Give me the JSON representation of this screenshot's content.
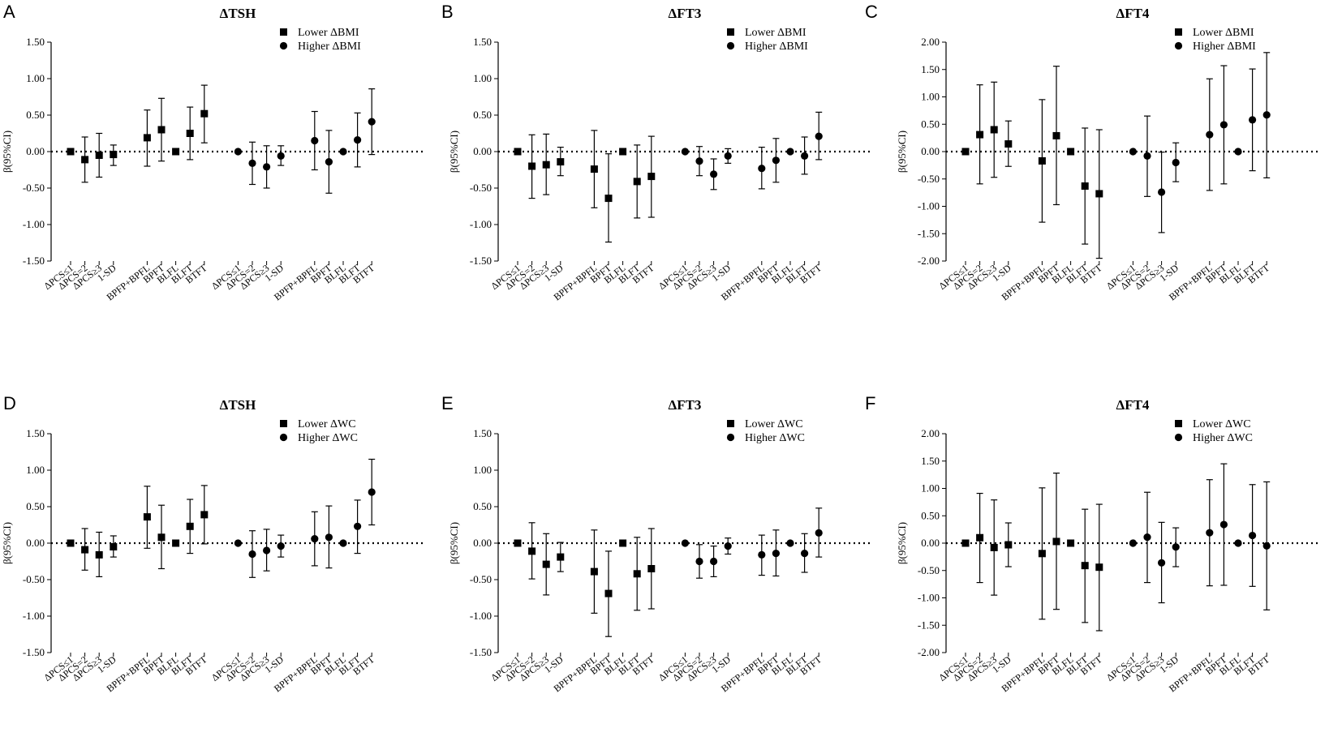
{
  "figure_label": "Six-panel forest plot figure",
  "colors": {
    "marker": "#000000",
    "axis": "#000000",
    "ref_line": "#000000",
    "background": "#ffffff"
  },
  "chart_data": [
    {
      "panel": "A",
      "type": "scatter",
      "title": "ΔTSH",
      "ylabel": "β(95%CI)",
      "ylim": [
        -1.5,
        1.5
      ],
      "yticks": [
        1.5,
        1.0,
        0.5,
        0.0,
        -0.5,
        -1.0,
        -1.5
      ],
      "ytick_labels": [
        "1.50",
        "1.00",
        "0.50",
        "0.00",
        "-0.50",
        "-1.00",
        "-1.50"
      ],
      "reference_line": 0,
      "legend_position": "top-right",
      "legend": [
        {
          "marker": "square",
          "label": "Lower ΔBMI"
        },
        {
          "marker": "circle",
          "label": "Higher ΔBMI"
        }
      ],
      "categories": [
        "ΔPCS≤1",
        "ΔPCS=2",
        "ΔPCS≥3",
        "1-SD",
        "BPFP+BPFL",
        "BPFT",
        "BLFL",
        "BLFT",
        "BTFT",
        "ΔPCS≤1",
        "ΔPCS=2",
        "ΔPCS≥3",
        "1-SD",
        "BPFP+BPFL",
        "BPFT",
        "BLFL",
        "BLFT",
        "BTFT"
      ],
      "series": [
        {
          "name": "Lower ΔBMI",
          "marker": "square",
          "values": [
            0.0,
            -0.11,
            -0.05,
            -0.04,
            0.19,
            0.3,
            0.0,
            0.25,
            0.52
          ],
          "lower": [
            0.0,
            -0.42,
            -0.35,
            -0.19,
            -0.2,
            -0.13,
            0.0,
            -0.11,
            0.12
          ],
          "upper": [
            0.0,
            0.2,
            0.25,
            0.09,
            0.57,
            0.73,
            0.0,
            0.61,
            0.91
          ]
        },
        {
          "name": "Higher ΔBMI",
          "marker": "circle",
          "values": [
            0.0,
            -0.16,
            -0.21,
            -0.06,
            0.15,
            -0.14,
            0.0,
            0.16,
            0.41
          ],
          "lower": [
            0.0,
            -0.45,
            -0.5,
            -0.19,
            -0.25,
            -0.57,
            0.0,
            -0.21,
            -0.04
          ],
          "upper": [
            0.0,
            0.13,
            0.08,
            0.08,
            0.55,
            0.29,
            0.0,
            0.53,
            0.86
          ]
        }
      ]
    },
    {
      "panel": "B",
      "type": "scatter",
      "title": "ΔFT3",
      "ylabel": "β(95%CI)",
      "ylim": [
        -1.5,
        1.5
      ],
      "yticks": [
        1.5,
        1.0,
        0.5,
        0.0,
        -0.5,
        -1.0,
        -1.5
      ],
      "ytick_labels": [
        "1.50",
        "1.00",
        "0.50",
        "0.00",
        "-0.50",
        "-1.00",
        "-1.50"
      ],
      "reference_line": 0,
      "legend_position": "top-right",
      "legend": [
        {
          "marker": "square",
          "label": "Lower ΔBMI"
        },
        {
          "marker": "circle",
          "label": "Higher ΔBMI"
        }
      ],
      "categories": [
        "ΔPCS≤1",
        "ΔPCS=2",
        "ΔPCS≥3",
        "1-SD",
        "BPFP+BPFL",
        "BPFT",
        "BLFL",
        "BLFT",
        "BTFT",
        "ΔPCS≤1",
        "ΔPCS=2",
        "ΔPCS≥3",
        "1-SD",
        "BPFP+BPFL",
        "BPFT",
        "BLFL",
        "BLFT",
        "BTFT"
      ],
      "series": [
        {
          "name": "Lower ΔBMI",
          "marker": "square",
          "values": [
            0.0,
            -0.2,
            -0.18,
            -0.14,
            -0.24,
            -0.64,
            0.0,
            -0.41,
            -0.34
          ],
          "lower": [
            0.0,
            -0.64,
            -0.59,
            -0.33,
            -0.77,
            -1.24,
            0.0,
            -0.91,
            -0.9
          ],
          "upper": [
            0.0,
            0.23,
            0.24,
            0.06,
            0.29,
            -0.03,
            0.0,
            0.09,
            0.21
          ]
        },
        {
          "name": "Higher ΔBMI",
          "marker": "circle",
          "values": [
            0.0,
            -0.13,
            -0.31,
            -0.06,
            -0.23,
            -0.12,
            0.0,
            -0.06,
            0.21
          ],
          "lower": [
            0.0,
            -0.33,
            -0.52,
            -0.16,
            -0.51,
            -0.42,
            0.0,
            -0.31,
            -0.11
          ],
          "upper": [
            0.0,
            0.07,
            -0.1,
            0.04,
            0.06,
            0.18,
            0.0,
            0.2,
            0.54
          ]
        }
      ]
    },
    {
      "panel": "C",
      "type": "scatter",
      "title": "ΔFT4",
      "ylabel": "β(95%CI)",
      "ylim": [
        -2.0,
        2.0
      ],
      "yticks": [
        2.0,
        1.5,
        1.0,
        0.5,
        0.0,
        -0.5,
        -1.0,
        -1.5,
        -2.0
      ],
      "ytick_labels": [
        "2.00",
        "1.50",
        "1.00",
        "0.50",
        "0.00",
        "-0.50",
        "-1.00",
        "-1.50",
        "-2.00"
      ],
      "reference_line": 0,
      "legend_position": "top-right",
      "legend": [
        {
          "marker": "square",
          "label": "Lower ΔBMI"
        },
        {
          "marker": "circle",
          "label": "Higher ΔBMI"
        }
      ],
      "categories": [
        "ΔPCS≤1",
        "ΔPCS=2",
        "ΔPCS≥3",
        "1-SD",
        "BPFP+BPFL",
        "BPFT",
        "BLFL",
        "BLFT",
        "BTFT",
        "ΔPCS≤1",
        "ΔPCS=2",
        "ΔPCS≥3",
        "1-SD",
        "BPFP+BPFL",
        "BPFT",
        "BLFL",
        "BLFT",
        "BTFT"
      ],
      "series": [
        {
          "name": "Lower ΔBMI",
          "marker": "square",
          "values": [
            0.0,
            0.31,
            0.4,
            0.14,
            -0.17,
            0.29,
            0.0,
            -0.63,
            -0.77
          ],
          "lower": [
            0.0,
            -0.59,
            -0.47,
            -0.27,
            -1.29,
            -0.97,
            0.0,
            -1.69,
            -1.95
          ],
          "upper": [
            0.0,
            1.22,
            1.27,
            0.56,
            0.95,
            1.56,
            0.0,
            0.43,
            0.4
          ]
        },
        {
          "name": "Higher ΔBMI",
          "marker": "circle",
          "values": [
            0.0,
            -0.08,
            -0.74,
            -0.2,
            0.31,
            0.49,
            0.0,
            0.58,
            0.67
          ],
          "lower": [
            0.0,
            -0.82,
            -1.48,
            -0.55,
            -0.71,
            -0.59,
            0.0,
            -0.35,
            -0.48
          ],
          "upper": [
            0.0,
            0.65,
            -0.01,
            0.16,
            1.33,
            1.57,
            0.0,
            1.51,
            1.81
          ]
        }
      ]
    },
    {
      "panel": "D",
      "type": "scatter",
      "title": "ΔTSH",
      "ylabel": "β(95%CI)",
      "ylim": [
        -1.5,
        1.5
      ],
      "yticks": [
        1.5,
        1.0,
        0.5,
        0.0,
        -0.5,
        -1.0,
        -1.5
      ],
      "ytick_labels": [
        "1.50",
        "1.00",
        "0.50",
        "0.00",
        "-0.50",
        "-1.00",
        "-1.50"
      ],
      "reference_line": 0,
      "legend_position": "top-right",
      "legend": [
        {
          "marker": "square",
          "label": "Lower ΔWC"
        },
        {
          "marker": "circle",
          "label": "Higher ΔWC"
        }
      ],
      "categories": [
        "ΔPCS≤1",
        "ΔPCS=2",
        "ΔPCS≥3",
        "1-SD",
        "BPFP+BPFL",
        "BPFT",
        "BLFL",
        "BLFT",
        "BTFT",
        "ΔPCS≤1",
        "ΔPCS=2",
        "ΔPCS≥3",
        "1-SD",
        "BPFP+BPFL",
        "BPFT",
        "BLFL",
        "BLFT",
        "BTFT"
      ],
      "series": [
        {
          "name": "Lower ΔWC",
          "marker": "square",
          "values": [
            0.0,
            -0.09,
            -0.16,
            -0.05,
            0.36,
            0.08,
            0.0,
            0.23,
            0.39
          ],
          "lower": [
            0.0,
            -0.37,
            -0.46,
            -0.19,
            -0.07,
            -0.35,
            0.0,
            -0.14,
            -0.01
          ],
          "upper": [
            0.0,
            0.2,
            0.15,
            0.1,
            0.78,
            0.52,
            0.0,
            0.6,
            0.79
          ]
        },
        {
          "name": "Higher ΔWC",
          "marker": "circle",
          "values": [
            0.0,
            -0.15,
            -0.1,
            -0.04,
            0.06,
            0.08,
            0.0,
            0.23,
            0.7
          ],
          "lower": [
            0.0,
            -0.47,
            -0.38,
            -0.19,
            -0.31,
            -0.34,
            0.0,
            -0.14,
            0.25
          ],
          "upper": [
            0.0,
            0.17,
            0.19,
            0.11,
            0.43,
            0.51,
            0.0,
            0.59,
            1.15
          ]
        }
      ]
    },
    {
      "panel": "E",
      "type": "scatter",
      "title": "ΔFT3",
      "ylabel": "β(95%CI)",
      "ylim": [
        -1.5,
        1.5
      ],
      "yticks": [
        1.5,
        1.0,
        0.5,
        0.0,
        -0.5,
        -1.0,
        -1.5
      ],
      "ytick_labels": [
        "1.50",
        "1.00",
        "0.50",
        "0.00",
        "-0.50",
        "-1.00",
        "-1.50"
      ],
      "reference_line": 0,
      "legend_position": "top-right",
      "legend": [
        {
          "marker": "square",
          "label": "Lower ΔWC"
        },
        {
          "marker": "circle",
          "label": "Higher ΔWC"
        }
      ],
      "categories": [
        "ΔPCS≤1",
        "ΔPCS=2",
        "ΔPCS≥3",
        "1-SD",
        "BPFP+BPFL",
        "BPFT",
        "BLFL",
        "BLFT",
        "BTFT",
        "ΔPCS≤1",
        "ΔPCS=2",
        "ΔPCS≥3",
        "1-SD",
        "BPFP+BPFL",
        "BPFT",
        "BLFL",
        "BLFT",
        "BTFT"
      ],
      "series": [
        {
          "name": "Lower ΔWC",
          "marker": "square",
          "values": [
            0.0,
            -0.11,
            -0.29,
            -0.19,
            -0.39,
            -0.69,
            0.0,
            -0.42,
            -0.35
          ],
          "lower": [
            0.0,
            -0.49,
            -0.71,
            -0.39,
            -0.96,
            -1.28,
            0.0,
            -0.92,
            -0.9
          ],
          "upper": [
            0.0,
            0.28,
            0.13,
            0.01,
            0.18,
            -0.11,
            0.0,
            0.08,
            0.2
          ]
        },
        {
          "name": "Higher ΔWC",
          "marker": "circle",
          "values": [
            0.0,
            -0.25,
            -0.25,
            -0.04,
            -0.16,
            -0.14,
            0.0,
            -0.14,
            0.14
          ],
          "lower": [
            0.0,
            -0.48,
            -0.46,
            -0.15,
            -0.44,
            -0.45,
            0.0,
            -0.4,
            -0.19
          ],
          "upper": [
            0.0,
            -0.02,
            -0.04,
            0.07,
            0.11,
            0.18,
            0.0,
            0.13,
            0.48
          ]
        }
      ]
    },
    {
      "panel": "F",
      "type": "scatter",
      "title": "ΔFT4",
      "ylabel": "β(95%CI)",
      "ylim": [
        -2.0,
        2.0
      ],
      "yticks": [
        2.0,
        1.5,
        1.0,
        0.5,
        0.0,
        -0.5,
        -1.0,
        -1.5,
        -2.0
      ],
      "ytick_labels": [
        "2.00",
        "1.50",
        "1.00",
        "0.50",
        "0.00",
        "-0.50",
        "-1.00",
        "-1.50",
        "-2.00"
      ],
      "reference_line": 0,
      "legend_position": "top-right",
      "legend": [
        {
          "marker": "square",
          "label": "Lower ΔWC"
        },
        {
          "marker": "circle",
          "label": "Higher ΔWC"
        }
      ],
      "categories": [
        "ΔPCS≤1",
        "ΔPCS=2",
        "ΔPCS≥3",
        "1-SD",
        "BPFP+BPFL",
        "BPFT",
        "BLFL",
        "BLFT",
        "BTFT",
        "ΔPCS≤1",
        "ΔPCS=2",
        "ΔPCS≥3",
        "1-SD",
        "BPFP+BPFL",
        "BPFT",
        "BLFL",
        "BLFT",
        "BTFT"
      ],
      "series": [
        {
          "name": "Lower ΔWC",
          "marker": "square",
          "values": [
            0.0,
            0.1,
            -0.08,
            -0.03,
            -0.19,
            0.03,
            0.0,
            -0.41,
            -0.44
          ],
          "lower": [
            0.0,
            -0.72,
            -0.95,
            -0.43,
            -1.39,
            -1.21,
            0.0,
            -1.45,
            -1.6
          ],
          "upper": [
            0.0,
            0.91,
            0.79,
            0.37,
            1.01,
            1.28,
            0.0,
            0.62,
            0.71
          ]
        },
        {
          "name": "Higher ΔWC",
          "marker": "circle",
          "values": [
            0.0,
            0.11,
            -0.36,
            -0.07,
            0.19,
            0.34,
            0.0,
            0.14,
            -0.05
          ],
          "lower": [
            0.0,
            -0.72,
            -1.09,
            -0.43,
            -0.78,
            -0.77,
            0.0,
            -0.79,
            -1.22
          ],
          "upper": [
            0.0,
            0.93,
            0.38,
            0.28,
            1.16,
            1.45,
            0.0,
            1.07,
            1.12
          ]
        }
      ]
    }
  ]
}
